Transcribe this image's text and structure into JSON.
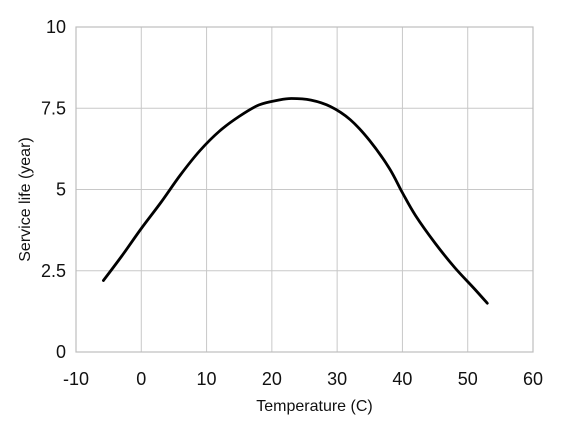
{
  "chart_data": {
    "type": "line",
    "title": "",
    "xlabel": "Temperature (C)",
    "ylabel": "Service life (year)",
    "xlim": [
      -10,
      60
    ],
    "ylim": [
      0,
      10
    ],
    "x_ticks": [
      -10,
      0,
      10,
      20,
      30,
      40,
      50,
      60
    ],
    "y_ticks": [
      0,
      2.5,
      5,
      7.5,
      10
    ],
    "x_tick_labels": [
      "-10",
      "0",
      "10",
      "20",
      "30",
      "40",
      "50",
      "60"
    ],
    "y_tick_labels": [
      "0",
      "2.5",
      "5",
      "7.5",
      "10"
    ],
    "grid": true,
    "legend": "none",
    "series": [
      {
        "x": [
          -5.8,
          -3,
          0,
          3,
          6,
          9,
          12,
          15,
          18,
          21,
          23,
          26,
          29,
          32,
          35,
          38,
          40,
          42,
          45,
          48,
          51,
          53
        ],
        "y": [
          2.2,
          2.95,
          3.8,
          4.6,
          5.45,
          6.2,
          6.8,
          7.25,
          7.6,
          7.75,
          7.8,
          7.75,
          7.55,
          7.15,
          6.5,
          5.65,
          4.9,
          4.2,
          3.35,
          2.6,
          1.95,
          1.5
        ],
        "color": "#000000"
      }
    ],
    "colors": {
      "line": "#000000",
      "grid": "#c8c8c8",
      "frame": "#bdbdbd",
      "text": "#111111"
    }
  }
}
